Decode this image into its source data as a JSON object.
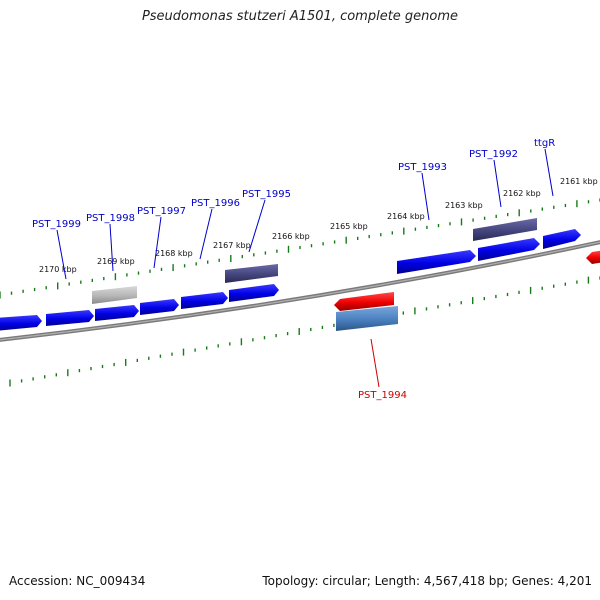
{
  "title": "Pseudomonas stutzeri A1501, complete genome",
  "footer": {
    "accession": "Accession: NC_009434",
    "topology": "Topology: circular; Length: 4,567,418 bp; Genes: 4,201"
  },
  "colors": {
    "forward_gene": "#0000ee",
    "reverse_gene": "#ff0000",
    "backbone": "#808080",
    "tick": "#1a7a1a",
    "label_blue": "#0000cc",
    "label_red": "#cc0000",
    "dark_purple": "#4b4b8c",
    "steel_blue": "#4f84c4",
    "grey_gene": "#b8b8b8"
  },
  "kbp_labels": [
    "2170 kbp",
    "2169 kbp",
    "2168 kbp",
    "2167 kbp",
    "2166 kbp",
    "2165 kbp",
    "2164 kbp",
    "2163 kbp",
    "2162 kbp",
    "2161 kbp"
  ],
  "gene_labels": [
    "PST_1999",
    "PST_1998",
    "PST_1997",
    "PST_1996",
    "PST_1995",
    "PST_1993",
    "PST_1992",
    "ttgR",
    "PST_1994"
  ]
}
